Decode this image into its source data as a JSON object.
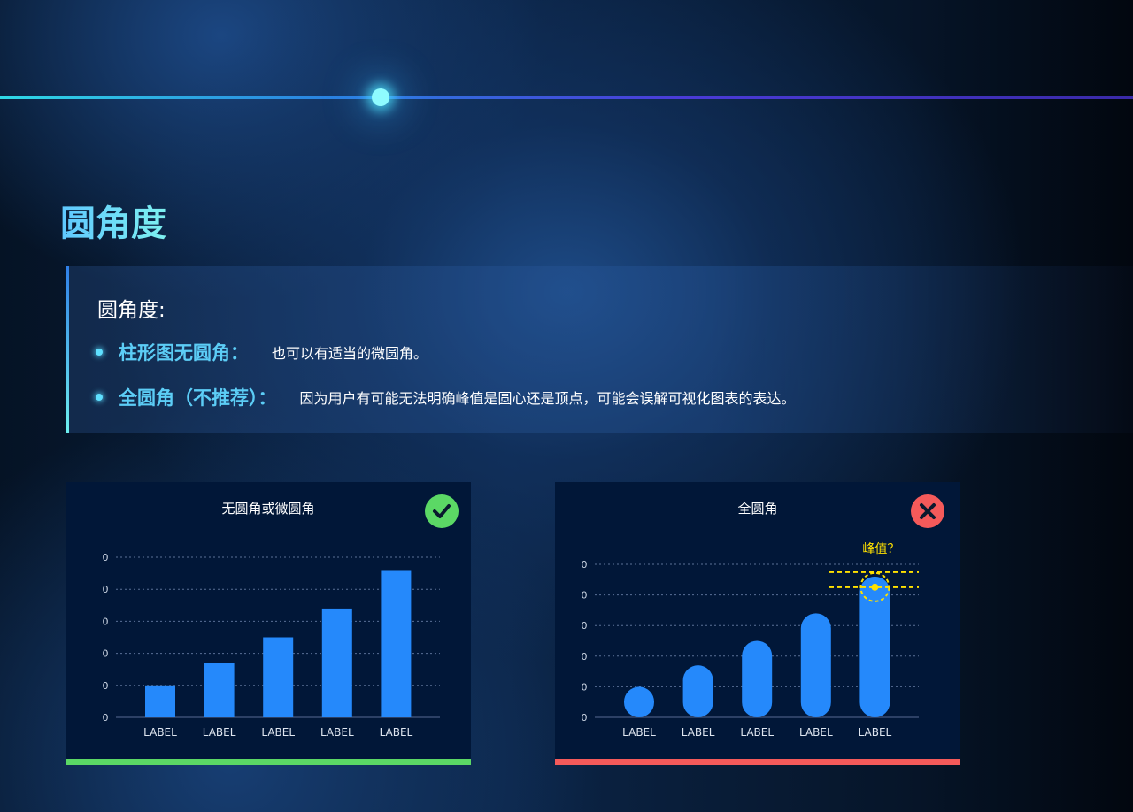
{
  "page": {
    "title": "圆角度"
  },
  "info": {
    "heading": "圆角度:",
    "items": [
      {
        "key": "柱形图无圆角：",
        "value": "也可以有适当的微圆角。"
      },
      {
        "key": "全圆角（不推荐）：",
        "value": "因为用户有可能无法明确峰值是圆心还是顶点，可能会误解可视化图表的表达。"
      }
    ]
  },
  "colors": {
    "bar": "#2589fb",
    "good": "#5bd865",
    "bad": "#f45a5a",
    "highlight": "#ffe100",
    "card_bg": "#011738"
  },
  "chart_data": [
    {
      "type": "bar",
      "title": "无圆角或微圆角",
      "badge": "check-icon",
      "categories": [
        "LABEL",
        "LABEL",
        "LABEL",
        "LABEL",
        "LABEL"
      ],
      "values": [
        1.0,
        1.7,
        2.5,
        3.4,
        4.6
      ],
      "ytick_labels": [
        "0",
        "0",
        "0",
        "0",
        "0",
        "0"
      ],
      "ylim": [
        0,
        5
      ],
      "grid": true,
      "corner": "square"
    },
    {
      "type": "bar",
      "title": "全圆角",
      "badge": "close-icon",
      "annotation": "峰值？",
      "categories": [
        "LABEL",
        "LABEL",
        "LABEL",
        "LABEL",
        "LABEL"
      ],
      "values": [
        1.0,
        1.7,
        2.5,
        3.4,
        4.6
      ],
      "ytick_labels": [
        "0",
        "0",
        "0",
        "0",
        "0",
        "0"
      ],
      "ylim": [
        0,
        5
      ],
      "grid": true,
      "corner": "full"
    }
  ]
}
